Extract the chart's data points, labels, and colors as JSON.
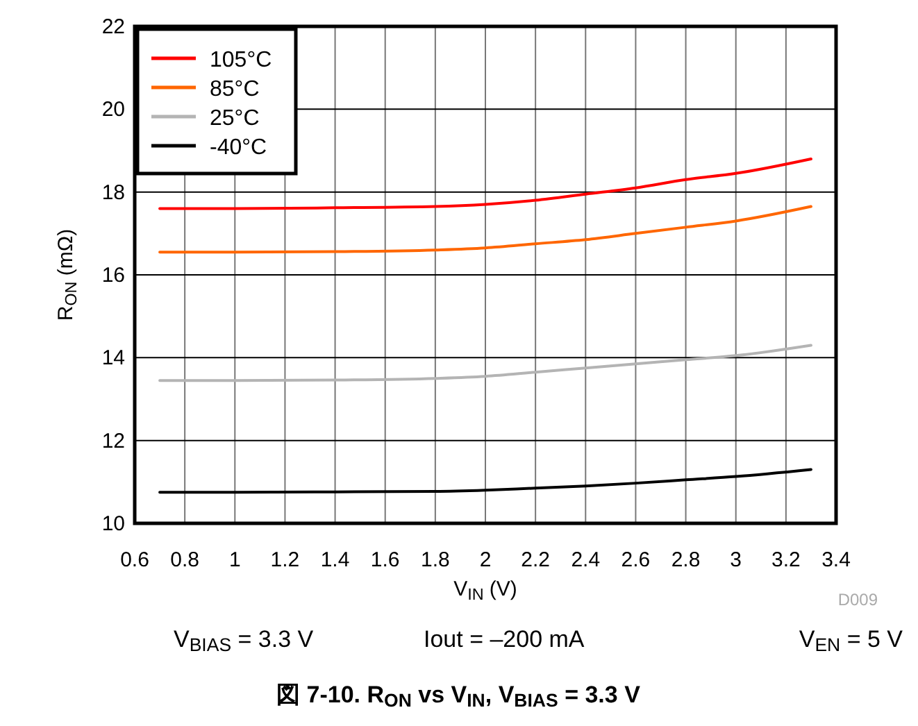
{
  "chart_data": {
    "type": "line",
    "title": "図 7-10. R$_{ON}$ vs V$_{IN}$, V$_{BIAS}$ = 3.3 V",
    "xlabel": "V$_{IN}$ (V)",
    "ylabel": "R$_{ON}$ (mΩ)",
    "annotations": [
      "D009",
      "V$_{BIAS}$ = 3.3 V",
      "Iout = –200 mA",
      "V$_{EN}$ = 5 V"
    ],
    "x": [
      0.7,
      1.0,
      1.4,
      1.8,
      2.0,
      2.2,
      2.4,
      2.6,
      2.8,
      3.0,
      3.3
    ],
    "series": [
      {
        "name": "105°C",
        "color": "#ff0000",
        "values": [
          17.6,
          17.6,
          17.62,
          17.65,
          17.7,
          17.8,
          17.95,
          18.1,
          18.3,
          18.45,
          18.8
        ]
      },
      {
        "name": "85°C",
        "color": "#ff6600",
        "values": [
          16.55,
          16.55,
          16.56,
          16.6,
          16.65,
          16.75,
          16.85,
          17.0,
          17.15,
          17.3,
          17.65
        ]
      },
      {
        "name": "25°C",
        "color": "#b4b4b4",
        "values": [
          13.45,
          13.45,
          13.46,
          13.5,
          13.55,
          13.65,
          13.75,
          13.85,
          13.95,
          14.05,
          14.3
        ]
      },
      {
        "name": "-40°C",
        "color": "#000000",
        "values": [
          10.75,
          10.75,
          10.76,
          10.77,
          10.8,
          10.85,
          10.9,
          10.97,
          11.05,
          11.13,
          11.3
        ]
      }
    ],
    "xlim": [
      0.6,
      3.4
    ],
    "xticks": [
      0.6,
      0.8,
      1,
      1.2,
      1.4,
      1.6,
      1.8,
      2,
      2.2,
      2.4,
      2.6,
      2.8,
      3,
      3.2,
      3.4
    ],
    "ylim": [
      10,
      22
    ],
    "yticks": [
      10,
      12,
      14,
      16,
      18,
      20,
      22
    ],
    "grid": true,
    "legend": "top left",
    "line_style": "solid"
  }
}
